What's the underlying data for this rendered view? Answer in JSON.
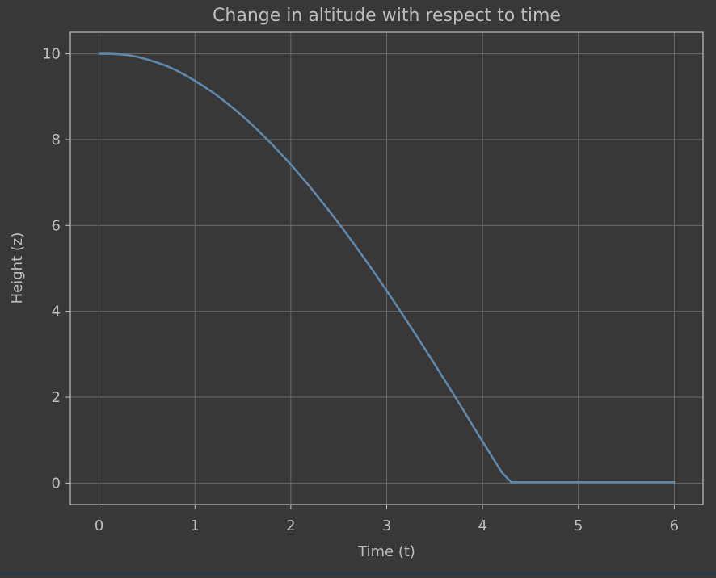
{
  "chart_data": {
    "type": "line",
    "title": "Change in altitude with respect to time",
    "xlabel": "Time (t)",
    "ylabel": "Height (z)",
    "xlim": [
      -0.3,
      6.3
    ],
    "ylim": [
      -0.5,
      10.5
    ],
    "x_ticks": [
      0,
      1,
      2,
      3,
      4,
      5,
      6
    ],
    "x_tick_labels": [
      "0",
      "1",
      "2",
      "3",
      "4",
      "5",
      "6"
    ],
    "y_ticks": [
      0,
      2,
      4,
      6,
      8,
      10
    ],
    "y_tick_labels": [
      "0",
      "2",
      "4",
      "6",
      "8",
      "10"
    ],
    "grid": true,
    "legend": false,
    "series": [
      {
        "color": "#5f87a9",
        "x": [
          0,
          0.1,
          0.2,
          0.3,
          0.4,
          0.5,
          0.6,
          0.7,
          0.8,
          0.9,
          1.0,
          1.1,
          1.2,
          1.3,
          1.4,
          1.5,
          1.6,
          1.7,
          1.8,
          1.9,
          2.0,
          2.1,
          2.2,
          2.3,
          2.4,
          2.5,
          2.6,
          2.7,
          2.8,
          2.9,
          3.0,
          3.1,
          3.2,
          3.3,
          3.4,
          3.5,
          3.6,
          3.7,
          3.8,
          3.9,
          4.0,
          4.1,
          4.2,
          4.3,
          4.4,
          4.5,
          4.6,
          4.7,
          4.8,
          4.9,
          5.0,
          5.1,
          5.2,
          5.3,
          5.4,
          5.5,
          5.6,
          5.7,
          5.8,
          5.9,
          6.0
        ],
        "y": [
          10.0,
          10.0,
          9.99,
          9.97,
          9.93,
          9.87,
          9.8,
          9.72,
          9.62,
          9.5,
          9.37,
          9.23,
          9.08,
          8.91,
          8.73,
          8.54,
          8.34,
          8.12,
          7.9,
          7.66,
          7.42,
          7.16,
          6.9,
          6.62,
          6.34,
          6.05,
          5.75,
          5.44,
          5.13,
          4.81,
          4.48,
          4.15,
          3.81,
          3.47,
          3.12,
          2.77,
          2.41,
          2.06,
          1.7,
          1.33,
          0.97,
          0.61,
          0.25,
          0.02,
          0.02,
          0.02,
          0.02,
          0.02,
          0.02,
          0.02,
          0.02,
          0.02,
          0.02,
          0.02,
          0.02,
          0.02,
          0.02,
          0.02,
          0.02,
          0.02,
          0.02
        ]
      }
    ],
    "colors": {
      "background": "#383838",
      "axes_background": "#383838",
      "axes_edge": "#bdbdbd",
      "grid": "#6a6a6a",
      "text": "#bdbdbd"
    }
  }
}
